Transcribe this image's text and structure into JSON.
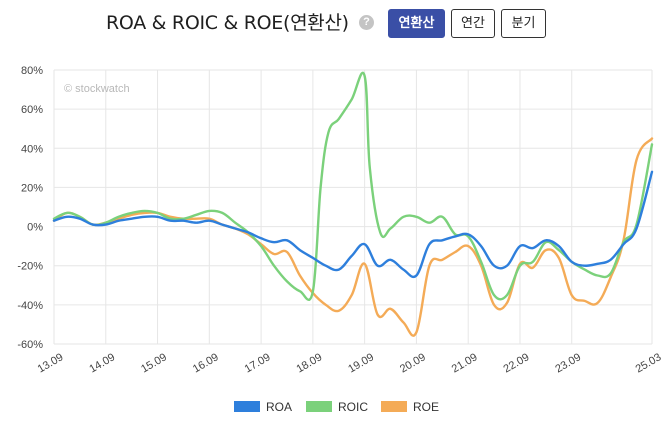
{
  "header": {
    "title": "ROA & ROIC & ROE(연환산)",
    "help_glyph": "?",
    "buttons": [
      {
        "label": "연환산",
        "active": true
      },
      {
        "label": "연간",
        "active": false
      },
      {
        "label": "분기",
        "active": false
      }
    ]
  },
  "watermark": "© stockwatch",
  "chart_data": {
    "type": "line",
    "title": "ROA & ROIC & ROE(연환산)",
    "ylim": [
      -60,
      80
    ],
    "yticks": [
      "80%",
      "60%",
      "40%",
      "20%",
      "0%",
      "-20%",
      "-40%",
      "-60%"
    ],
    "ytick_values": [
      80,
      60,
      40,
      20,
      0,
      -20,
      -40,
      -60
    ],
    "xlim": [
      0,
      11.55
    ],
    "xticks": [
      "13.09",
      "14.09",
      "15.09",
      "16.09",
      "17.09",
      "18.09",
      "19.09",
      "20.09",
      "21.09",
      "22.09",
      "23.09",
      "25.03"
    ],
    "xtick_positions": [
      0,
      1,
      2,
      3,
      4,
      5,
      6,
      7,
      8,
      9,
      10,
      11.55
    ],
    "grid": true,
    "legend_position": "bottom",
    "series": [
      {
        "name": "ROA",
        "color": "#2e7fdc",
        "x": [
          0,
          0.25,
          0.5,
          0.75,
          1,
          1.25,
          1.5,
          1.75,
          2,
          2.25,
          2.5,
          2.75,
          3,
          3.25,
          3.5,
          3.75,
          4,
          4.25,
          4.5,
          4.75,
          5,
          5.25,
          5.5,
          5.75,
          6,
          6.25,
          6.5,
          6.75,
          7,
          7.25,
          7.5,
          7.75,
          8,
          8.25,
          8.5,
          8.75,
          9,
          9.25,
          9.5,
          9.75,
          10,
          10.25,
          10.5,
          10.75,
          11,
          11.25,
          11.55
        ],
        "y": [
          3,
          5,
          4,
          1,
          1,
          3,
          4,
          5,
          5,
          3,
          3,
          2,
          3,
          1,
          -1,
          -3,
          -6,
          -8,
          -7,
          -12,
          -16,
          -20,
          -22,
          -15,
          -9,
          -20,
          -17,
          -22,
          -25,
          -9,
          -7,
          -5,
          -4,
          -10,
          -20,
          -20,
          -10,
          -11,
          -7,
          -10,
          -18,
          -20,
          -19,
          -17,
          -9,
          -1,
          28
        ]
      },
      {
        "name": "ROIC",
        "color": "#7bd17b",
        "x": [
          0,
          0.25,
          0.5,
          0.75,
          1,
          1.25,
          1.5,
          1.75,
          2,
          2.25,
          2.5,
          2.75,
          3,
          3.25,
          3.5,
          3.75,
          4,
          4.25,
          4.5,
          4.75,
          5,
          5.15,
          5.3,
          5.5,
          5.75,
          6,
          6.1,
          6.3,
          6.5,
          6.75,
          7,
          7.25,
          7.5,
          7.75,
          8,
          8.25,
          8.5,
          8.75,
          9,
          9.25,
          9.5,
          9.75,
          10,
          10.25,
          10.5,
          10.75,
          11,
          11.25,
          11.55
        ],
        "y": [
          4,
          7,
          5,
          1,
          2,
          5,
          7,
          8,
          7,
          4,
          4,
          6,
          8,
          7,
          2,
          -3,
          -10,
          -20,
          -28,
          -33,
          -33,
          20,
          48,
          55,
          65,
          77,
          30,
          -3,
          -1,
          5,
          5,
          2,
          5,
          -4,
          -5,
          -18,
          -35,
          -35,
          -20,
          -18,
          -8,
          -12,
          -18,
          -22,
          -25,
          -24,
          -8,
          1,
          42
        ]
      },
      {
        "name": "ROE",
        "color": "#f4ab57",
        "x": [
          0,
          0.25,
          0.5,
          0.75,
          1,
          1.25,
          1.5,
          1.75,
          2,
          2.25,
          2.5,
          2.75,
          3,
          3.25,
          3.5,
          3.75,
          4,
          4.25,
          4.5,
          4.75,
          5,
          5.25,
          5.5,
          5.75,
          6,
          6.25,
          6.5,
          6.75,
          7,
          7.25,
          7.5,
          7.75,
          8,
          8.25,
          8.5,
          8.75,
          9,
          9.25,
          9.5,
          9.75,
          10,
          10.25,
          10.5,
          10.75,
          11,
          11.25,
          11.55
        ],
        "y": [
          3,
          7,
          5,
          1,
          2,
          4,
          6,
          7,
          7,
          5,
          4,
          4,
          4,
          1,
          -1,
          -4,
          -9,
          -14,
          -13,
          -25,
          -34,
          -40,
          -43,
          -35,
          -19,
          -45,
          -42,
          -49,
          -54,
          -20,
          -17,
          -13,
          -10,
          -20,
          -40,
          -39,
          -19,
          -21,
          -12,
          -16,
          -35,
          -38,
          -39,
          -26,
          -7,
          34,
          45
        ]
      }
    ]
  }
}
